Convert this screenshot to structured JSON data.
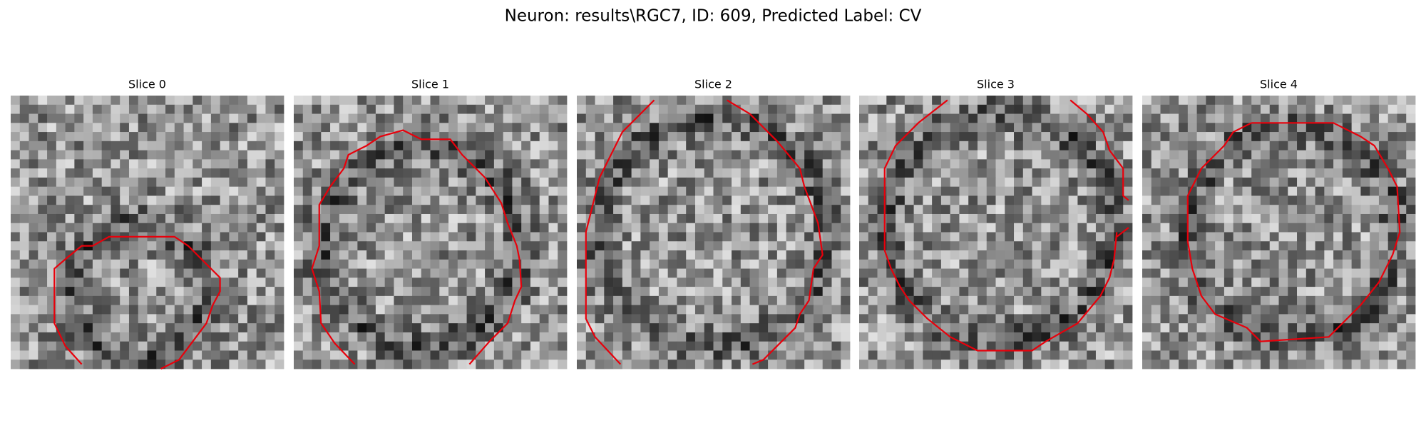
{
  "title": "Neuron: results\\RGC7, ID: 609, Predicted Label: CV",
  "panels": [
    {
      "title": "Slice 0"
    },
    {
      "title": "Slice 1"
    },
    {
      "title": "Slice 2"
    },
    {
      "title": "Slice 3"
    },
    {
      "title": "Slice 4"
    }
  ]
}
